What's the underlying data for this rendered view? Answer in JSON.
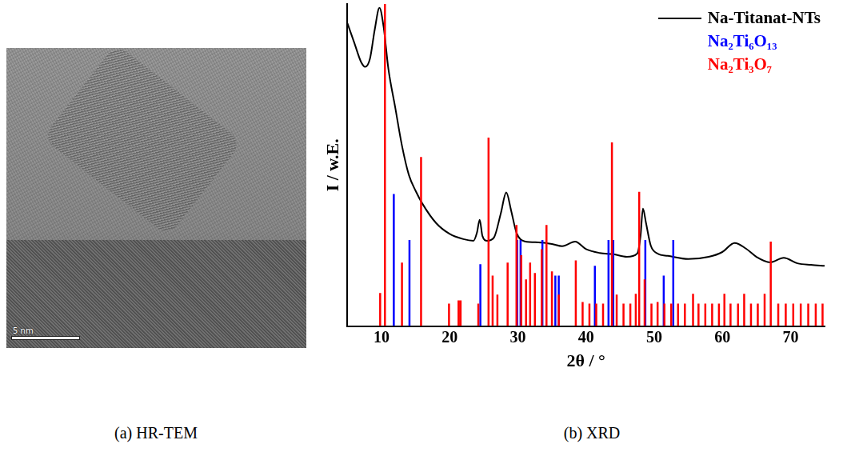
{
  "chart_data": {
    "type": "line",
    "caption": "(b) XRD",
    "x_label": "2θ / °",
    "y_label": "I / w.E.",
    "xlim": [
      5,
      75
    ],
    "xticks": [
      10,
      20,
      30,
      40,
      50,
      60,
      70
    ],
    "ylim": [
      0,
      100
    ],
    "tick_labels": "x",
    "grid": false,
    "legend": "upper right",
    "series": [
      {
        "name": "Na-Titanat-NTs",
        "color": "#000000",
        "type": "line",
        "x": [
          5,
          6,
          7,
          7.6,
          8.3,
          9,
          9.7,
          10.3,
          11,
          12,
          13,
          14,
          15,
          16,
          18,
          20,
          22,
          23.5,
          24.0,
          24.4,
          24.8,
          25.5,
          26.5,
          27.5,
          28.3,
          29,
          29.8,
          31,
          33,
          35,
          36.5,
          38.4,
          40,
          42,
          44,
          46,
          47.5,
          48.0,
          48.35,
          48.8,
          49.5,
          50.5,
          52,
          55,
          58,
          60,
          61.8,
          63.5,
          65,
          67,
          69,
          71,
          73,
          75
        ],
        "values": [
          94,
          88,
          82,
          80.5,
          83,
          92,
          98.8,
          93,
          80,
          68,
          56,
          47,
          42,
          38,
          32,
          28.6,
          27,
          26.5,
          29,
          33,
          28,
          26.5,
          27.5,
          35,
          41.5,
          36,
          29,
          26.3,
          26,
          25.5,
          24.8,
          26.2,
          23.9,
          22.7,
          22.3,
          21.5,
          22.5,
          28,
          36.5,
          32,
          25,
          22.5,
          21.8,
          20.8,
          21.5,
          23,
          25.8,
          24,
          21.5,
          19.8,
          21.2,
          19.5,
          19,
          18.7
        ]
      },
      {
        "name": "Na₂Ti₆O₁₃",
        "color": "#0000ff",
        "type": "bar",
        "x": [
          11.8,
          14.1,
          24.5,
          29.9,
          30.4,
          33.6,
          35.5,
          36.0,
          41.3,
          43.3,
          44.0,
          48.7,
          51.4,
          52.8
        ],
        "values": [
          41,
          26.7,
          19.2,
          26.7,
          26.7,
          26.7,
          15.7,
          15.7,
          18.7,
          26.7,
          26.7,
          26.7,
          15.7,
          26.7
        ]
      },
      {
        "name": "Na₂Ti₃O₇",
        "color": "#ff0000",
        "type": "bar",
        "x": [
          9.8,
          10.5,
          13.0,
          15.8,
          19.9,
          21.3,
          21.6,
          24.2,
          25.7,
          26.3,
          27.0,
          28.5,
          29.8,
          30.5,
          31.2,
          31.8,
          32.5,
          33.5,
          34.2,
          35.0,
          36.0,
          38.5,
          39.5,
          40.5,
          41.5,
          42.5,
          43.8,
          44.5,
          45.5,
          46.5,
          47.3,
          47.8,
          48.6,
          49.6,
          50.5,
          51.5,
          52.5,
          53.5,
          54.5,
          55.7,
          56.5,
          57.5,
          58.5,
          59.5,
          60.3,
          61.2,
          62.3,
          63.2,
          64.2,
          65.2,
          66.2,
          67.1,
          68.2,
          69.3,
          70.4,
          71.5,
          72.6,
          73.7,
          74.7
        ],
        "values": [
          10.3,
          100,
          19.7,
          52.5,
          7,
          8,
          8,
          7,
          58.5,
          15.7,
          9.8,
          19.7,
          31.4,
          22,
          14.5,
          19.7,
          16.5,
          23.9,
          31.4,
          17,
          9.8,
          20.4,
          7.5,
          7,
          7,
          7,
          57,
          9.8,
          7,
          7,
          10,
          41.7,
          14.5,
          7,
          7.5,
          7,
          7,
          7,
          7,
          10,
          7,
          7,
          7,
          7,
          10,
          7,
          7,
          10,
          7,
          7,
          10,
          26.2,
          7,
          7,
          7,
          7,
          7,
          7,
          7
        ]
      }
    ]
  },
  "figure": {
    "tem_caption": "(a) HR-TEM",
    "tem_scale_bar": "5 nm"
  }
}
